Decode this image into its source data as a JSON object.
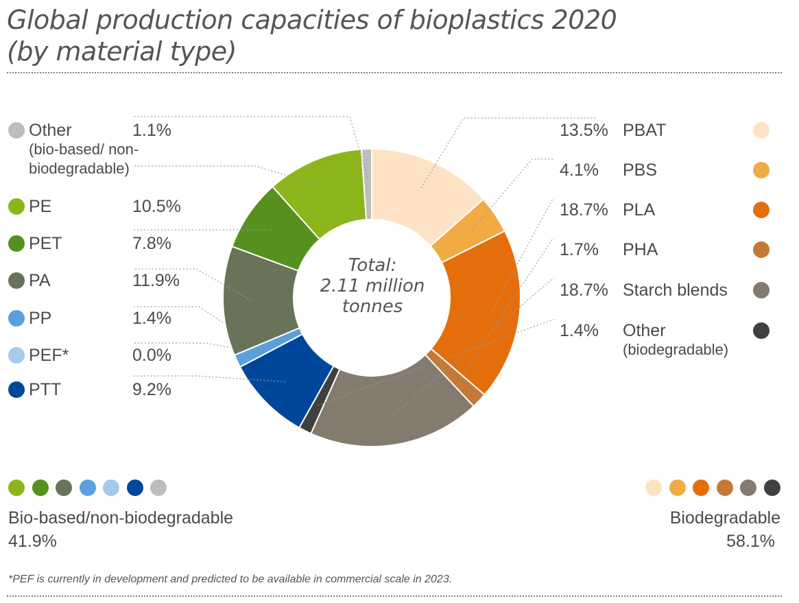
{
  "chart_data": {
    "type": "pie",
    "title": "Global production capacities of bioplastics 2020",
    "subtitle": "(by material type)",
    "center_label": [
      "Total:",
      "2.11 million",
      "tonnes"
    ],
    "slices": [
      {
        "label": "PBAT",
        "value": 13.5,
        "pct_label": "13.5%",
        "color": "#fde3c4",
        "group": "biodegradable"
      },
      {
        "label": "PBS",
        "value": 4.1,
        "pct_label": "4.1%",
        "color": "#f0ab43",
        "group": "biodegradable"
      },
      {
        "label": "PLA",
        "value": 18.7,
        "pct_label": "18.7%",
        "color": "#e56e0c",
        "group": "biodegradable"
      },
      {
        "label": "PHA",
        "value": 1.7,
        "pct_label": "1.7%",
        "color": "#c47937",
        "group": "biodegradable"
      },
      {
        "label": "Starch blends",
        "value": 18.7,
        "pct_label": "18.7%",
        "color": "#847a6e",
        "group": "biodegradable"
      },
      {
        "label": "Other",
        "sublabel": "(biodegradable)",
        "value": 1.4,
        "pct_label": "1.4%",
        "color": "#404040",
        "group": "biodegradable"
      },
      {
        "label": "PTT",
        "value": 9.2,
        "pct_label": "9.2%",
        "color": "#00479b",
        "group": "bio-based"
      },
      {
        "label": "PEF*",
        "value": 0.0,
        "pct_label": "0.0%",
        "color": "#a6c9ec",
        "group": "bio-based"
      },
      {
        "label": "PP",
        "value": 1.4,
        "pct_label": "1.4%",
        "color": "#5aa0dc",
        "group": "bio-based"
      },
      {
        "label": "PA",
        "value": 11.9,
        "pct_label": "11.9%",
        "color": "#68735a",
        "group": "bio-based"
      },
      {
        "label": "PET",
        "value": 7.8,
        "pct_label": "7.8%",
        "color": "#56901e",
        "group": "bio-based"
      },
      {
        "label": "PE",
        "value": 10.5,
        "pct_label": "10.5%",
        "color": "#8cb51b",
        "group": "bio-based"
      },
      {
        "label": "Other",
        "sublabel": "(bio-based/ non-biodegradable)",
        "value": 1.1,
        "pct_label": "1.1%",
        "color": "#bdbdbd",
        "group": "bio-based"
      }
    ],
    "groups": [
      {
        "name": "Bio-based/non-biodegradable",
        "pct": "41.9%",
        "colors": [
          "#8cb51b",
          "#56901e",
          "#68735a",
          "#5aa0dc",
          "#a6c9ec",
          "#00479b",
          "#bdbdbd"
        ]
      },
      {
        "name": "Biodegradable",
        "pct": "58.1%",
        "colors": [
          "#fde3c4",
          "#f0ab43",
          "#e56e0c",
          "#c47937",
          "#847a6e",
          "#404040"
        ]
      }
    ],
    "footnote": "*PEF is currently in development and predicted to be available in commercial scale in 2023."
  }
}
